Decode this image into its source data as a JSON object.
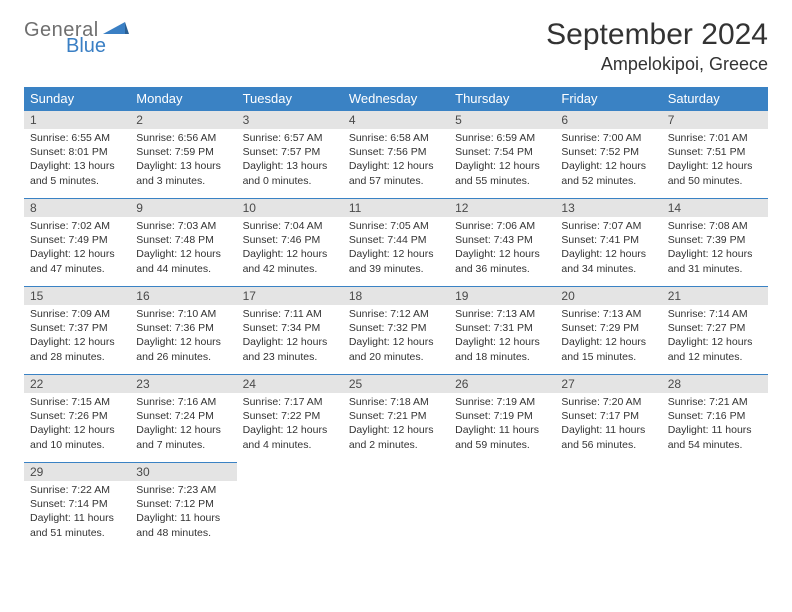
{
  "brand": {
    "part1": "General",
    "part2": "Blue"
  },
  "header": {
    "month": "September 2024",
    "location": "Ampelokipoi, Greece"
  },
  "colors": {
    "header_bg": "#3a82c4",
    "daynum_bg": "#e4e4e4",
    "border": "#3a82c4",
    "logo_gray": "#6f6f6f",
    "logo_blue": "#3a7fc4"
  },
  "dayNames": [
    "Sunday",
    "Monday",
    "Tuesday",
    "Wednesday",
    "Thursday",
    "Friday",
    "Saturday"
  ],
  "weeks": [
    [
      {
        "n": "1",
        "sr": "6:55 AM",
        "ss": "8:01 PM",
        "dl": "13 hours and 5 minutes."
      },
      {
        "n": "2",
        "sr": "6:56 AM",
        "ss": "7:59 PM",
        "dl": "13 hours and 3 minutes."
      },
      {
        "n": "3",
        "sr": "6:57 AM",
        "ss": "7:57 PM",
        "dl": "13 hours and 0 minutes."
      },
      {
        "n": "4",
        "sr": "6:58 AM",
        "ss": "7:56 PM",
        "dl": "12 hours and 57 minutes."
      },
      {
        "n": "5",
        "sr": "6:59 AM",
        "ss": "7:54 PM",
        "dl": "12 hours and 55 minutes."
      },
      {
        "n": "6",
        "sr": "7:00 AM",
        "ss": "7:52 PM",
        "dl": "12 hours and 52 minutes."
      },
      {
        "n": "7",
        "sr": "7:01 AM",
        "ss": "7:51 PM",
        "dl": "12 hours and 50 minutes."
      }
    ],
    [
      {
        "n": "8",
        "sr": "7:02 AM",
        "ss": "7:49 PM",
        "dl": "12 hours and 47 minutes."
      },
      {
        "n": "9",
        "sr": "7:03 AM",
        "ss": "7:48 PM",
        "dl": "12 hours and 44 minutes."
      },
      {
        "n": "10",
        "sr": "7:04 AM",
        "ss": "7:46 PM",
        "dl": "12 hours and 42 minutes."
      },
      {
        "n": "11",
        "sr": "7:05 AM",
        "ss": "7:44 PM",
        "dl": "12 hours and 39 minutes."
      },
      {
        "n": "12",
        "sr": "7:06 AM",
        "ss": "7:43 PM",
        "dl": "12 hours and 36 minutes."
      },
      {
        "n": "13",
        "sr": "7:07 AM",
        "ss": "7:41 PM",
        "dl": "12 hours and 34 minutes."
      },
      {
        "n": "14",
        "sr": "7:08 AM",
        "ss": "7:39 PM",
        "dl": "12 hours and 31 minutes."
      }
    ],
    [
      {
        "n": "15",
        "sr": "7:09 AM",
        "ss": "7:37 PM",
        "dl": "12 hours and 28 minutes."
      },
      {
        "n": "16",
        "sr": "7:10 AM",
        "ss": "7:36 PM",
        "dl": "12 hours and 26 minutes."
      },
      {
        "n": "17",
        "sr": "7:11 AM",
        "ss": "7:34 PM",
        "dl": "12 hours and 23 minutes."
      },
      {
        "n": "18",
        "sr": "7:12 AM",
        "ss": "7:32 PM",
        "dl": "12 hours and 20 minutes."
      },
      {
        "n": "19",
        "sr": "7:13 AM",
        "ss": "7:31 PM",
        "dl": "12 hours and 18 minutes."
      },
      {
        "n": "20",
        "sr": "7:13 AM",
        "ss": "7:29 PM",
        "dl": "12 hours and 15 minutes."
      },
      {
        "n": "21",
        "sr": "7:14 AM",
        "ss": "7:27 PM",
        "dl": "12 hours and 12 minutes."
      }
    ],
    [
      {
        "n": "22",
        "sr": "7:15 AM",
        "ss": "7:26 PM",
        "dl": "12 hours and 10 minutes."
      },
      {
        "n": "23",
        "sr": "7:16 AM",
        "ss": "7:24 PM",
        "dl": "12 hours and 7 minutes."
      },
      {
        "n": "24",
        "sr": "7:17 AM",
        "ss": "7:22 PM",
        "dl": "12 hours and 4 minutes."
      },
      {
        "n": "25",
        "sr": "7:18 AM",
        "ss": "7:21 PM",
        "dl": "12 hours and 2 minutes."
      },
      {
        "n": "26",
        "sr": "7:19 AM",
        "ss": "7:19 PM",
        "dl": "11 hours and 59 minutes."
      },
      {
        "n": "27",
        "sr": "7:20 AM",
        "ss": "7:17 PM",
        "dl": "11 hours and 56 minutes."
      },
      {
        "n": "28",
        "sr": "7:21 AM",
        "ss": "7:16 PM",
        "dl": "11 hours and 54 minutes."
      }
    ],
    [
      {
        "n": "29",
        "sr": "7:22 AM",
        "ss": "7:14 PM",
        "dl": "11 hours and 51 minutes."
      },
      {
        "n": "30",
        "sr": "7:23 AM",
        "ss": "7:12 PM",
        "dl": "11 hours and 48 minutes."
      },
      null,
      null,
      null,
      null,
      null
    ]
  ],
  "labels": {
    "sunrise": "Sunrise: ",
    "sunset": "Sunset: ",
    "daylight": "Daylight: "
  }
}
